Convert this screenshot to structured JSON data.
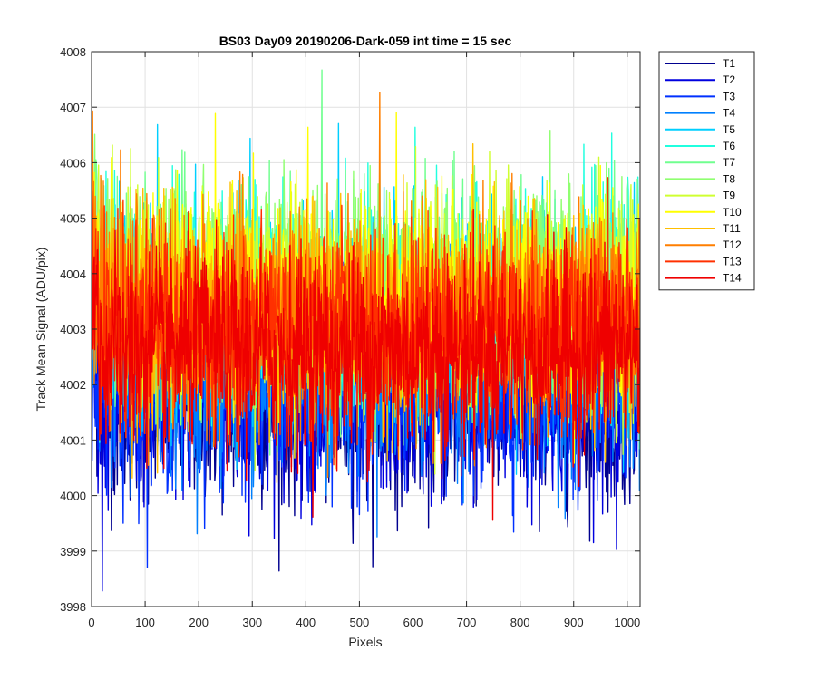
{
  "chart_data": {
    "type": "line",
    "title": "BS03 Day09 20190206-Dark-059 int time = 15 sec",
    "xlabel": "Pixels",
    "ylabel": "Track Mean Signal (ADU/pix)",
    "xlim": [
      0,
      1024
    ],
    "ylim": [
      3998,
      4008
    ],
    "xticks": [
      0,
      100,
      200,
      300,
      400,
      500,
      600,
      700,
      800,
      900,
      1000
    ],
    "yticks": [
      3998,
      3999,
      4000,
      4001,
      4002,
      4003,
      4004,
      4005,
      4006,
      4007,
      4008
    ],
    "grid": true,
    "legend_position": "outside-top-right",
    "series": [
      {
        "name": "T1",
        "color": "#00008F",
        "mean": 4001.6,
        "std": 0.85
      },
      {
        "name": "T2",
        "color": "#0000DF",
        "mean": 4001.7,
        "std": 0.85
      },
      {
        "name": "T3",
        "color": "#0030FF",
        "mean": 4001.9,
        "std": 0.85
      },
      {
        "name": "T4",
        "color": "#0080FF",
        "mean": 4002.3,
        "std": 0.9
      },
      {
        "name": "T5",
        "color": "#00CFFF",
        "mean": 4003.3,
        "std": 0.95
      },
      {
        "name": "T6",
        "color": "#20FFDF",
        "mean": 4003.5,
        "std": 0.95
      },
      {
        "name": "T7",
        "color": "#70FF8F",
        "mean": 4003.6,
        "std": 0.95
      },
      {
        "name": "T8",
        "color": "#8FFF70",
        "mean": 4003.7,
        "std": 0.95
      },
      {
        "name": "T9",
        "color": "#CFFF30",
        "mean": 4003.6,
        "std": 0.95
      },
      {
        "name": "T10",
        "color": "#FFFF00",
        "mean": 4003.5,
        "std": 0.95
      },
      {
        "name": "T11",
        "color": "#FFBF00",
        "mean": 4003.2,
        "std": 0.95
      },
      {
        "name": "T12",
        "color": "#FF7F00",
        "mean": 4003.2,
        "std": 0.95
      },
      {
        "name": "T13",
        "color": "#FF3000",
        "mean": 4003.0,
        "std": 0.9
      },
      {
        "name": "T14",
        "color": "#EF0000",
        "mean": 4002.6,
        "std": 0.9
      }
    ]
  }
}
